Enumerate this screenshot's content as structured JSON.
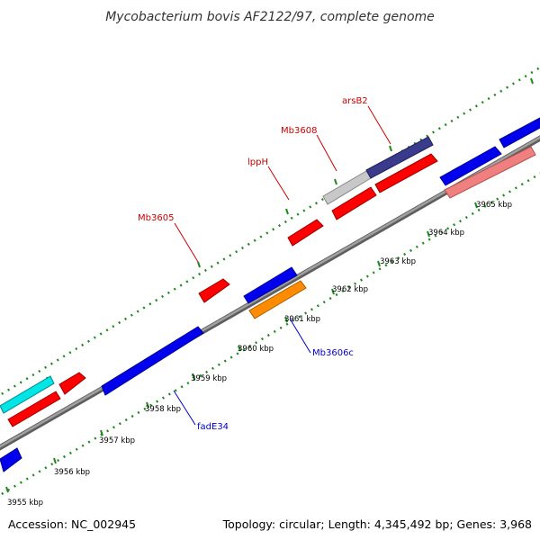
{
  "title": "Mycobacterium bovis AF2122/97, complete genome",
  "footer": {
    "accession": "Accession: NC_002945",
    "summary": "Topology: circular; Length: 4,345,492 bp; Genes: 3,968"
  },
  "ticks": [
    "3955 kbp",
    "3956 kbp",
    "3957 kbp",
    "3958 kbp",
    "3959 kbp",
    "3960 kbp",
    "3961 kbp",
    "3962 kbp",
    "3963 kbp",
    "3964 kbp",
    "3965 kbp"
  ],
  "gene_labels": {
    "forward": [
      "arsB2",
      "Mb3608",
      "lppH",
      "Mb3605"
    ],
    "reverse": [
      "Mb3606c",
      "fadE34"
    ]
  },
  "colors": {
    "backbone": "#8a8a8a",
    "tick": "#1e8a1e",
    "forward_label": "#cc0000",
    "reverse_label": "#0000cc",
    "red": "#ff0000",
    "blue": "#0000ee",
    "cyan": "#00e5e5",
    "orange": "#ff8c00",
    "gray": "#c8c8c8",
    "navy": "#3b3b8e",
    "pink": "#f08080"
  }
}
